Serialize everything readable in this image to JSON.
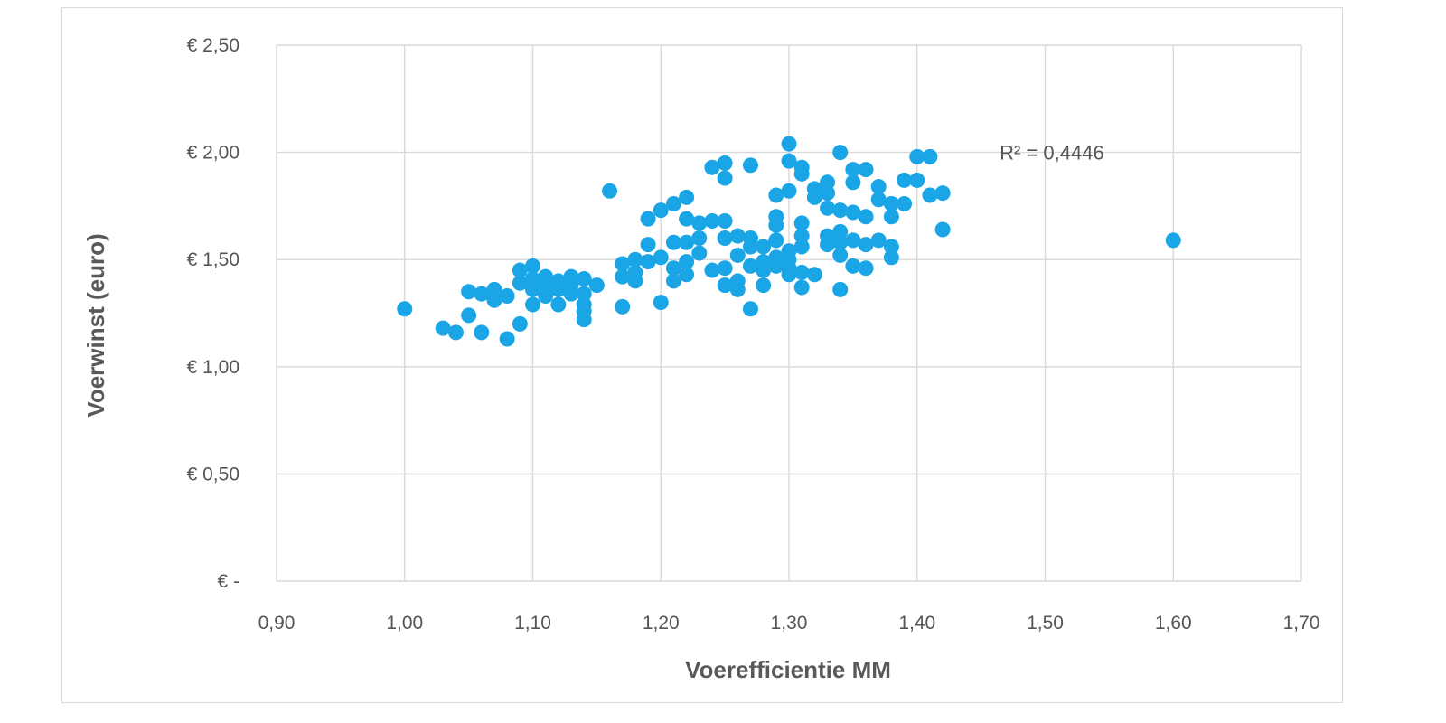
{
  "chart_data": {
    "type": "scatter",
    "xlabel": "Voerefficientie MM",
    "ylabel": "Voerwinst (euro)",
    "xlim": [
      0.9,
      1.7
    ],
    "ylim": [
      0,
      2.5
    ],
    "x_ticks": [
      {
        "value": 0.9,
        "label": "0,90"
      },
      {
        "value": 1.0,
        "label": "1,00"
      },
      {
        "value": 1.1,
        "label": "1,10"
      },
      {
        "value": 1.2,
        "label": "1,20"
      },
      {
        "value": 1.3,
        "label": "1,30"
      },
      {
        "value": 1.4,
        "label": "1,40"
      },
      {
        "value": 1.5,
        "label": "1,50"
      },
      {
        "value": 1.6,
        "label": "1,60"
      },
      {
        "value": 1.7,
        "label": "1,70"
      }
    ],
    "y_ticks": [
      {
        "value": 0.0,
        "label": "€ -"
      },
      {
        "value": 0.5,
        "label": "€ 0,50"
      },
      {
        "value": 1.0,
        "label": "€ 1,00"
      },
      {
        "value": 1.5,
        "label": "€ 1,50"
      },
      {
        "value": 2.0,
        "label": "€ 2,00"
      },
      {
        "value": 2.5,
        "label": "€ 2,50"
      }
    ],
    "grid": true,
    "legend": "none",
    "point_color": "#1aa6e6",
    "gridline_color": "#d9d9d9",
    "annotation": {
      "text": "R² = 0,4446",
      "x": 1.48,
      "y": 2.0
    },
    "series": [
      {
        "x": [
          1.0,
          1.03,
          1.04,
          1.05,
          1.05,
          1.06,
          1.06,
          1.07,
          1.07,
          1.08,
          1.08,
          1.09,
          1.09,
          1.09,
          1.1,
          1.1,
          1.1,
          1.1,
          1.11,
          1.11,
          1.11,
          1.12,
          1.12,
          1.12,
          1.13,
          1.13,
          1.13,
          1.14,
          1.14,
          1.14,
          1.14,
          1.14,
          1.15,
          1.16,
          1.17,
          1.17,
          1.17,
          1.18,
          1.18,
          1.18,
          1.19,
          1.19,
          1.19,
          1.2,
          1.2,
          1.2,
          1.21,
          1.21,
          1.21,
          1.21,
          1.22,
          1.22,
          1.22,
          1.22,
          1.22,
          1.23,
          1.23,
          1.23,
          1.24,
          1.24,
          1.24,
          1.25,
          1.25,
          1.25,
          1.25,
          1.25,
          1.25,
          1.26,
          1.26,
          1.26,
          1.26,
          1.27,
          1.27,
          1.27,
          1.27,
          1.27,
          1.28,
          1.28,
          1.28,
          1.28,
          1.29,
          1.29,
          1.29,
          1.29,
          1.29,
          1.29,
          1.3,
          1.3,
          1.3,
          1.3,
          1.3,
          1.3,
          1.3,
          1.31,
          1.31,
          1.31,
          1.31,
          1.31,
          1.31,
          1.31,
          1.32,
          1.32,
          1.32,
          1.33,
          1.33,
          1.33,
          1.33,
          1.33,
          1.34,
          1.34,
          1.34,
          1.34,
          1.34,
          1.34,
          1.35,
          1.35,
          1.35,
          1.35,
          1.35,
          1.36,
          1.36,
          1.36,
          1.36,
          1.37,
          1.37,
          1.37,
          1.38,
          1.38,
          1.38,
          1.38,
          1.39,
          1.39,
          1.4,
          1.4,
          1.41,
          1.41,
          1.42,
          1.42,
          1.6
        ],
        "y": [
          1.27,
          1.18,
          1.16,
          1.35,
          1.24,
          1.34,
          1.16,
          1.36,
          1.31,
          1.33,
          1.13,
          1.45,
          1.39,
          1.2,
          1.47,
          1.41,
          1.36,
          1.29,
          1.42,
          1.38,
          1.33,
          1.4,
          1.36,
          1.29,
          1.42,
          1.38,
          1.34,
          1.41,
          1.34,
          1.29,
          1.26,
          1.22,
          1.38,
          1.82,
          1.48,
          1.42,
          1.28,
          1.5,
          1.44,
          1.4,
          1.69,
          1.57,
          1.49,
          1.73,
          1.51,
          1.3,
          1.76,
          1.58,
          1.46,
          1.4,
          1.79,
          1.69,
          1.58,
          1.49,
          1.43,
          1.67,
          1.6,
          1.53,
          1.93,
          1.68,
          1.45,
          1.95,
          1.88,
          1.68,
          1.46,
          1.38,
          1.6,
          1.61,
          1.52,
          1.4,
          1.36,
          1.94,
          1.6,
          1.56,
          1.47,
          1.27,
          1.56,
          1.49,
          1.45,
          1.38,
          1.8,
          1.7,
          1.66,
          1.59,
          1.51,
          1.47,
          2.04,
          1.96,
          1.82,
          1.54,
          1.5,
          1.46,
          1.43,
          1.93,
          1.9,
          1.67,
          1.61,
          1.56,
          1.44,
          1.37,
          1.83,
          1.79,
          1.43,
          1.86,
          1.81,
          1.74,
          1.61,
          1.57,
          2.0,
          1.73,
          1.63,
          1.58,
          1.52,
          1.36,
          1.92,
          1.86,
          1.72,
          1.59,
          1.47,
          1.92,
          1.7,
          1.57,
          1.46,
          1.84,
          1.78,
          1.59,
          1.76,
          1.56,
          1.51,
          1.7,
          1.87,
          1.76,
          1.98,
          1.87,
          1.98,
          1.8,
          1.81,
          1.64,
          1.59
        ]
      }
    ]
  }
}
